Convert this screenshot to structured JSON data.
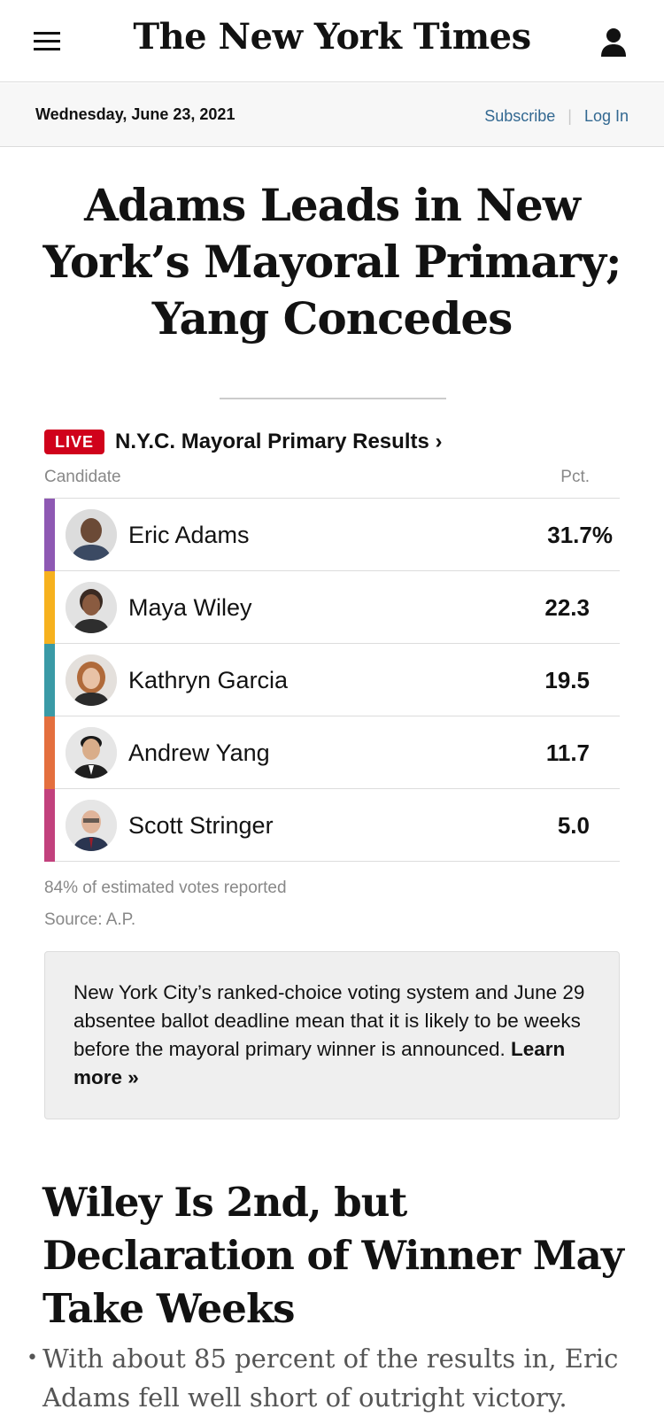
{
  "masthead": {
    "logo_text": "The New York Times",
    "menu_icon": "hamburger-icon",
    "account_icon": "user-icon"
  },
  "datebar": {
    "date": "Wednesday, June 23, 2021",
    "subscribe": "Subscribe",
    "login": "Log In"
  },
  "headline": "Adams Leads in New York’s Mayoral Primary; Yang Concedes",
  "results": {
    "badge": "LIVE",
    "title": "N.Y.C. Mayoral Primary Results ›",
    "col_candidate": "Candidate",
    "col_pct": "Pct.",
    "rows": [
      {
        "name": "Eric Adams",
        "pct": "31.7%",
        "color": "#8e59b3"
      },
      {
        "name": "Maya Wiley",
        "pct": "22.3",
        "color": "#f6b11d"
      },
      {
        "name": "Kathryn Garcia",
        "pct": "19.5",
        "color": "#3a9aa6"
      },
      {
        "name": "Andrew Yang",
        "pct": "11.7",
        "color": "#e46f3e"
      },
      {
        "name": "Scott Stringer",
        "pct": "5.0",
        "color": "#c2417d"
      }
    ],
    "reported": "84% of estimated votes reported",
    "source": "Source: A.P."
  },
  "note": {
    "text": "New York City’s ranked-choice voting system and June 29 absentee ballot deadline mean that it is likely to be weeks before the mayoral primary winner is announced.",
    "link": "Learn more »"
  },
  "subhead": "Wiley Is 2nd, but Declaration of Winner May Take Weeks",
  "bullet": "With about 85 percent of the results in, Eric Adams fell well short of outright victory."
}
